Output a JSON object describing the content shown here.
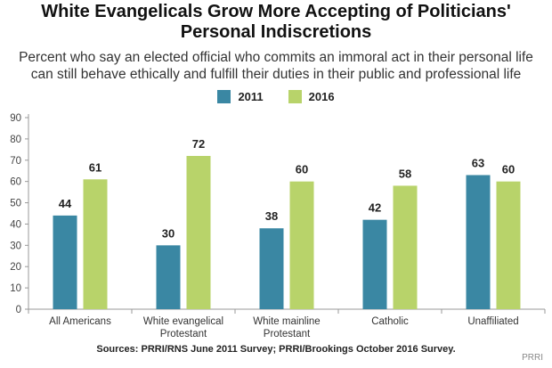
{
  "title_line1": "White Evangelicals Grow More Accepting of Politicians'",
  "title_line2": "Personal Indiscretions",
  "subtitle_line1": "Percent who say an elected official who commits an immoral act in their personal life",
  "subtitle_line2": "can still behave ethically and fulfill their duties in their public and professional life",
  "sources": "Sources: PRRI/RNS June 2011 Survey; PRRI/Brookings October 2016 Survey.",
  "brand": "PRRI",
  "colors": {
    "s2011": "#3a87a3",
    "s2016": "#b8d36a",
    "axis": "#999999",
    "text": "#222222"
  },
  "chart_data": {
    "type": "bar",
    "categories": [
      [
        "All Americans"
      ],
      [
        "White evangelical",
        "Protestant"
      ],
      [
        "White mainline",
        "Protestant"
      ],
      [
        "Catholic"
      ],
      [
        "Unaffiliated"
      ]
    ],
    "series": [
      {
        "name": "2011",
        "values": [
          44,
          30,
          38,
          42,
          63
        ]
      },
      {
        "name": "2016",
        "values": [
          61,
          72,
          60,
          58,
          60
        ]
      }
    ],
    "ylim": [
      0,
      90
    ],
    "yticks": [
      0,
      10,
      20,
      30,
      40,
      50,
      60,
      70,
      80,
      90
    ],
    "legend": "top-center",
    "grid": false
  }
}
